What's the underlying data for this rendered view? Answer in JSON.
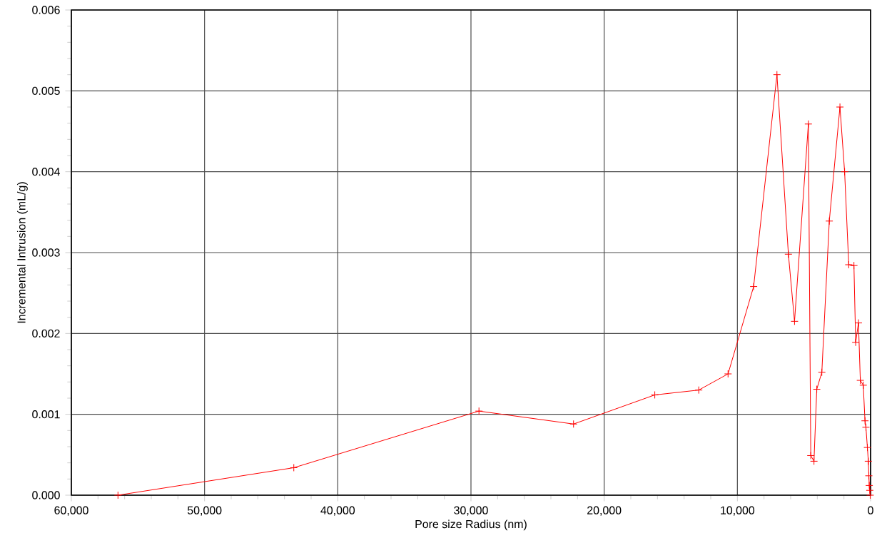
{
  "chart_data": {
    "type": "line",
    "xlabel": "Pore size Radius (nm)",
    "ylabel": "Incremental Intrusion (mL/g)",
    "xlim": [
      60000,
      0
    ],
    "ylim": [
      0,
      0.006
    ],
    "xticks": [
      {
        "value": 60000,
        "label": "60,000"
      },
      {
        "value": 50000,
        "label": "50,000"
      },
      {
        "value": 40000,
        "label": "40,000"
      },
      {
        "value": 30000,
        "label": "30,000"
      },
      {
        "value": 20000,
        "label": "20,000"
      },
      {
        "value": 10000,
        "label": "10,000"
      },
      0
    ],
    "yticks": [
      {
        "value": 0,
        "label": "0.000"
      },
      {
        "value": 0.001,
        "label": "0.001"
      },
      {
        "value": 0.002,
        "label": "0.002"
      },
      {
        "value": 0.003,
        "label": "0.003"
      },
      {
        "value": 0.004,
        "label": "0.004"
      },
      {
        "value": 0.005,
        "label": "0.005"
      },
      {
        "value": 0.006,
        "label": "0.006"
      }
    ],
    "grid": true,
    "marker": "cross",
    "line_style": "solid",
    "series": [
      {
        "color": "#ff0000",
        "x": [
          56500,
          43300,
          29400,
          22300,
          16200,
          12900,
          10700,
          8780,
          7030,
          6170,
          5710,
          4670,
          4490,
          4250,
          4040,
          3660,
          3100,
          2300,
          1950,
          1640,
          1250,
          1120,
          910,
          770,
          550,
          420,
          350,
          240,
          170,
          130,
          100,
          60,
          30
        ],
        "values": [
          0,
          0.00034,
          0.00104,
          0.00088,
          0.00124,
          0.0013,
          0.0015,
          0.00258,
          0.0052,
          0.00298,
          0.00215,
          0.00459,
          0.00049,
          0.00042,
          0.00131,
          0.00152,
          0.00339,
          0.0048,
          0.004,
          0.00285,
          0.00284,
          0.00189,
          0.00213,
          0.00142,
          0.00136,
          0.00092,
          0.00084,
          0.00059,
          0.00042,
          0.00024,
          0.00012,
          6e-05,
          0
        ]
      }
    ]
  }
}
